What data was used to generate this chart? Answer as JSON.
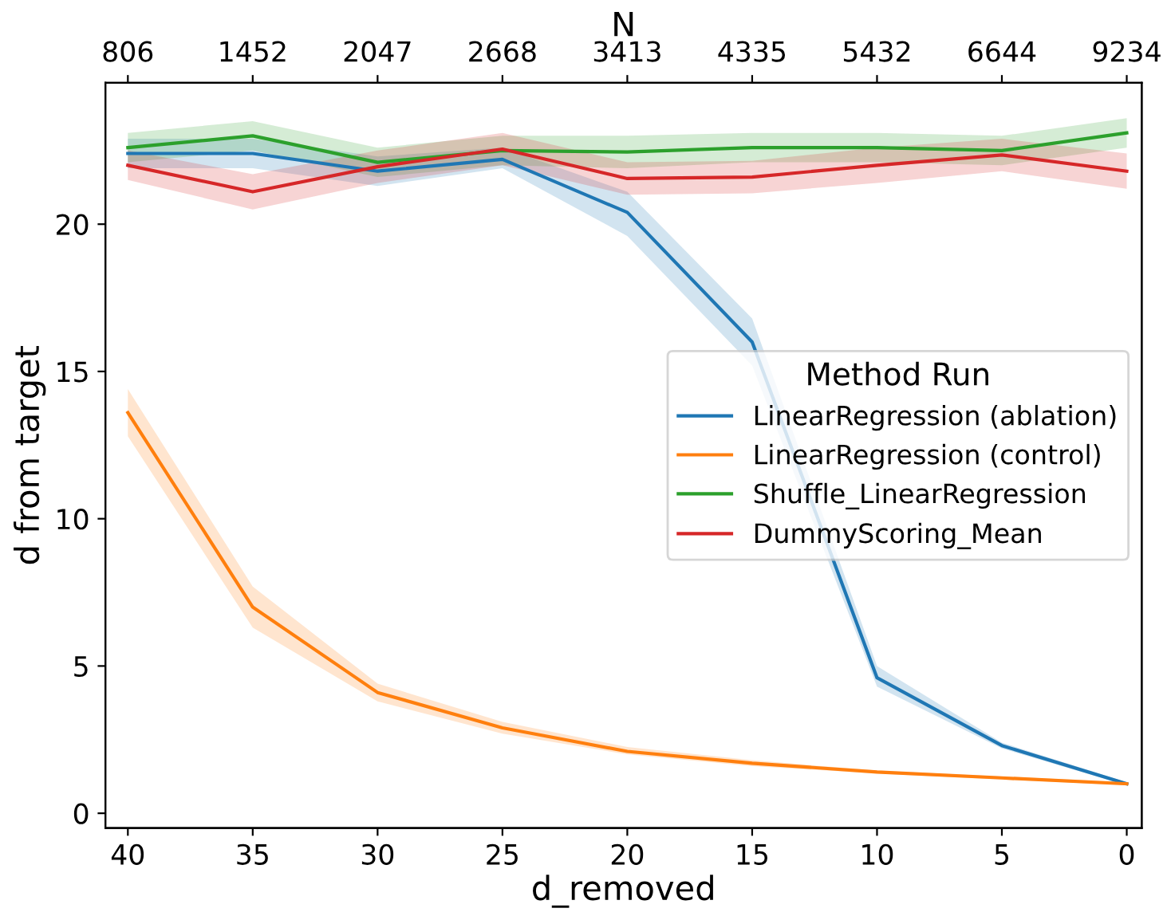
{
  "chart_data": {
    "type": "line",
    "xlabel": "d_removed",
    "ylabel": "d from target",
    "x2label": "N",
    "legend_title": "Method Run",
    "x": [
      40,
      35,
      30,
      25,
      20,
      15,
      10,
      5,
      0
    ],
    "xlim": [
      40.9,
      -0.6
    ],
    "xticks": [
      40,
      35,
      30,
      25,
      20,
      15,
      10,
      5,
      0
    ],
    "annotations": [
      "806",
      "1452",
      "2047",
      "2668",
      "3413",
      "4335",
      "5432",
      "6644",
      "9234"
    ],
    "ylim": [
      -0.5,
      24.8
    ],
    "yticks": [
      0,
      5,
      10,
      15,
      20
    ],
    "grid": false,
    "legend": "right",
    "marker": "none",
    "line_style": "solid",
    "series": [
      {
        "name": "LinearRegression (ablation)",
        "color": "#1f77b4",
        "values": [
          22.4,
          22.4,
          21.8,
          22.2,
          20.4,
          16.0,
          4.6,
          2.3,
          1.0
        ],
        "lower": [
          21.9,
          21.9,
          21.3,
          21.9,
          19.6,
          15.2,
          4.3,
          2.2,
          0.95
        ],
        "upper": [
          22.9,
          22.9,
          22.3,
          22.6,
          21.1,
          16.8,
          5.0,
          2.4,
          1.05
        ]
      },
      {
        "name": "LinearRegression (control)",
        "color": "#ff7f0e",
        "values": [
          13.6,
          7.0,
          4.1,
          2.9,
          2.1,
          1.7,
          1.4,
          1.2,
          1.0
        ],
        "lower": [
          12.8,
          6.3,
          3.8,
          2.7,
          2.0,
          1.6,
          1.35,
          1.15,
          0.95
        ],
        "upper": [
          14.4,
          7.7,
          4.4,
          3.1,
          2.25,
          1.8,
          1.45,
          1.25,
          1.05
        ]
      },
      {
        "name": "Shuffle_LinearRegression",
        "color": "#2ca02c",
        "values": [
          22.6,
          23.0,
          22.1,
          22.5,
          22.45,
          22.6,
          22.6,
          22.5,
          23.1
        ],
        "lower": [
          22.1,
          22.5,
          21.6,
          22.0,
          21.9,
          22.1,
          22.1,
          22.0,
          22.6
        ],
        "upper": [
          23.1,
          23.5,
          22.6,
          23.0,
          23.0,
          23.1,
          23.1,
          23.0,
          23.6
        ]
      },
      {
        "name": "DummyScoring_Mean",
        "color": "#d62728",
        "values": [
          22.0,
          21.1,
          21.95,
          22.55,
          21.55,
          21.6,
          22.0,
          22.35,
          21.8
        ],
        "lower": [
          21.5,
          20.5,
          21.4,
          22.0,
          21.0,
          21.05,
          21.4,
          21.8,
          21.2
        ],
        "upper": [
          22.5,
          21.7,
          22.5,
          23.1,
          22.1,
          22.15,
          22.6,
          22.9,
          22.4
        ]
      }
    ]
  }
}
